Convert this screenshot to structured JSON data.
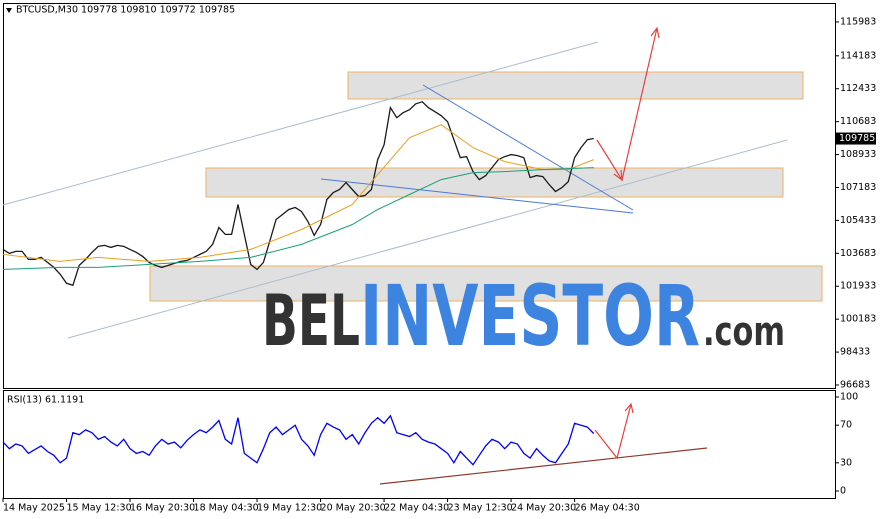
{
  "chart_data": [
    {
      "type": "line",
      "title": "BTCUSD,M30 109778 109810 109772 109785",
      "xlim": [
        0,
        131
      ],
      "ylim": [
        96524,
        116990
      ],
      "yticks": [
        96683,
        98433,
        100183,
        101933,
        103683,
        105433,
        107183,
        108933,
        110683,
        112433,
        114183,
        115983
      ],
      "watermark": {
        "brand": "BEL",
        "highlight": "INVESTOR",
        "suffix": ".com"
      },
      "series": [
        {
          "color": "#1a1a1a",
          "values": [
            103891,
            103680,
            103785,
            103785,
            103361,
            103361,
            103467,
            103202,
            102937,
            102566,
            102088,
            101982,
            103043,
            103361,
            103732,
            104050,
            104103,
            103997,
            104103,
            104050,
            103891,
            103732,
            103520,
            103202,
            103043,
            102937,
            103043,
            103149,
            103255,
            103308,
            103467,
            103626,
            103785,
            104156,
            105058,
            104687,
            104687,
            106278,
            104687,
            103096,
            102831,
            103202,
            104316,
            105482,
            105748,
            106013,
            106119,
            105907,
            105376,
            104634,
            105217,
            106543,
            106914,
            107074,
            107445,
            107074,
            106702,
            106755,
            107074,
            108665,
            109460,
            111422,
            110892,
            111157,
            111316,
            111634,
            111740,
            111422,
            111210,
            110998,
            110680,
            109725,
            108771,
            108824,
            108028,
            107604,
            107816,
            108240,
            108665,
            108824,
            108930,
            108877,
            108771,
            107710,
            107816,
            107763,
            107339,
            106967,
            107179,
            107498,
            108771,
            109301,
            109725,
            109785
          ]
        },
        {
          "color": "#e8a020",
          "x": [
            0,
            9,
            15,
            23,
            31,
            39,
            47,
            55,
            59,
            64,
            69,
            74,
            79,
            85,
            89,
            93
          ],
          "values": [
            103626,
            103255,
            103467,
            103255,
            103467,
            103891,
            104952,
            106278,
            107869,
            109831,
            110521,
            109301,
            108559,
            108135,
            108135,
            108665
          ]
        },
        {
          "color": "#1aa07a",
          "x": [
            0,
            9,
            15,
            23,
            31,
            39,
            47,
            55,
            59,
            64,
            69,
            74,
            79,
            85,
            89,
            93
          ],
          "values": [
            102831,
            102937,
            102937,
            103096,
            103255,
            103467,
            104156,
            105217,
            106013,
            106808,
            107604,
            107975,
            108028,
            108135,
            108188,
            108241
          ]
        }
      ]
    },
    {
      "type": "line",
      "title": "RSI(13) 61.1191",
      "xlim": [
        0,
        131
      ],
      "ylim": [
        -7.4,
        107.4
      ],
      "yticks": [
        0,
        30,
        70,
        100
      ],
      "xticks": [
        {
          "value": 0,
          "label": "14 May 2025"
        },
        {
          "value": 10,
          "label": "15 May 12:30"
        },
        {
          "value": 20,
          "label": "16 May 20:30"
        },
        {
          "value": 30,
          "label": "18 May 04:30"
        },
        {
          "value": 40,
          "label": "19 May 12:30"
        },
        {
          "value": 50,
          "label": "20 May 20:30"
        },
        {
          "value": 60,
          "label": "22 May 04:30"
        },
        {
          "value": 70,
          "label": "23 May 12:30"
        },
        {
          "value": 80,
          "label": "24 May 20:30"
        },
        {
          "value": 90,
          "label": "26 May 04:30"
        }
      ],
      "series": [
        {
          "color": "#0000ff",
          "values": [
            52,
            45,
            50,
            48,
            40,
            44,
            48,
            42,
            38,
            30,
            35,
            62,
            60,
            65,
            62,
            55,
            58,
            52,
            48,
            55,
            45,
            40,
            42,
            38,
            48,
            55,
            50,
            52,
            46,
            54,
            60,
            65,
            62,
            68,
            75,
            55,
            50,
            78,
            40,
            35,
            30,
            45,
            62,
            68,
            60,
            65,
            70,
            55,
            48,
            38,
            60,
            72,
            68,
            65,
            55,
            60,
            50,
            62,
            72,
            78,
            72,
            80,
            62,
            60,
            58,
            62,
            55,
            52,
            50,
            45,
            40,
            30,
            42,
            35,
            28,
            38,
            48,
            55,
            52,
            45,
            52,
            50,
            40,
            35,
            45,
            38,
            32,
            30,
            40,
            50,
            72,
            70,
            68,
            61.1191
          ]
        }
      ]
    }
  ]
}
